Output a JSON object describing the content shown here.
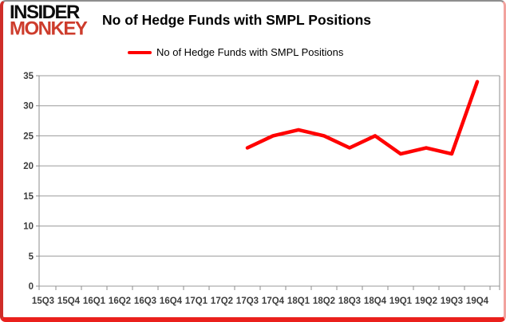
{
  "brand": {
    "line1": "INSIDER",
    "line2": "MONKEY"
  },
  "header": {
    "title": "No of Hedge Funds with SMPL Positions"
  },
  "legend": {
    "label": "No of Hedge Funds with SMPL Positions",
    "swatch_color": "#ff0000"
  },
  "colors": {
    "series_red": "#ff0000",
    "logo_red": "#cd3c2c",
    "axis_text": "#3d3d3d",
    "gridline": "#9a9a9a",
    "plot_border": "#8c8c8c"
  },
  "chart_data": {
    "type": "line",
    "title": "No of Hedge Funds with SMPL Positions",
    "categories": [
      "15Q3",
      "15Q4",
      "16Q1",
      "16Q2",
      "16Q3",
      "16Q4",
      "17Q1",
      "17Q2",
      "17Q3",
      "17Q4",
      "18Q1",
      "18Q2",
      "18Q3",
      "18Q4",
      "19Q1",
      "19Q2",
      "19Q3",
      "19Q4"
    ],
    "series": [
      {
        "name": "No of Hedge Funds with SMPL Positions",
        "color": "#ff0000",
        "values": [
          null,
          null,
          null,
          null,
          null,
          null,
          null,
          null,
          23,
          25,
          26,
          25,
          23,
          25,
          22,
          23,
          22,
          34
        ]
      }
    ],
    "ylim": [
      0,
      35
    ],
    "ytick_step": 5,
    "yticks": [
      0,
      5,
      10,
      15,
      20,
      25,
      30,
      35
    ],
    "xlabel": "",
    "ylabel": "",
    "grid": true,
    "legend_position": "top"
  }
}
